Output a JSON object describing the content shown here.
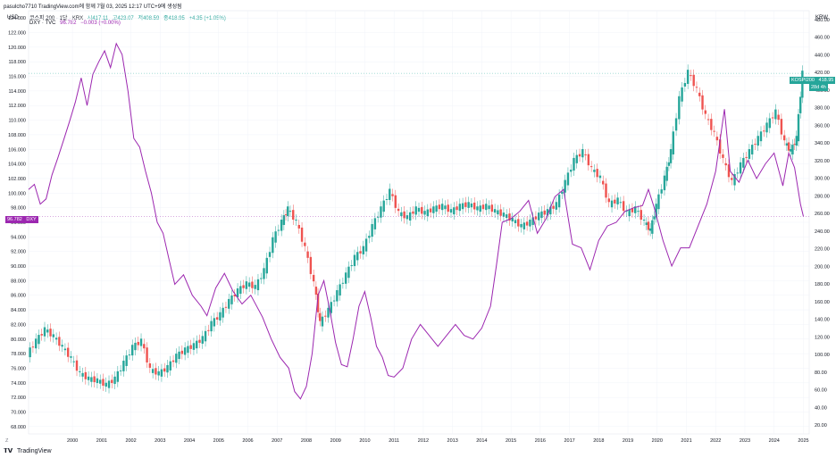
{
  "header": {
    "author_line": "pasulcho7710 TradingView.com에 함께 7월 03, 2025 12:17 UTC+9에 생성됨"
  },
  "legend": {
    "kospi": {
      "name": "코스피 200 · 1달 · KRX",
      "open": "시417.11",
      "high": "고423.07",
      "low": "저408.59",
      "close": "종418.95",
      "change": "+4.35 (+1.05%)",
      "color": "#26a69a"
    },
    "dxy": {
      "name": "DXY · TVC",
      "value": "96.782",
      "change": "−0.003 (+0.00%)",
      "color": "#9c27b0"
    }
  },
  "axes": {
    "left_unit": "USD",
    "right_unit": "KRW",
    "left_ticks": [
      "124.000",
      "122.000",
      "120.000",
      "118.000",
      "116.000",
      "114.000",
      "112.000",
      "110.000",
      "108.000",
      "106.000",
      "104.000",
      "102.000",
      "100.000",
      "98.000",
      "96.000",
      "94.000",
      "92.000",
      "90.000",
      "88.000",
      "86.000",
      "84.000",
      "82.000",
      "80.000",
      "78.000",
      "76.000",
      "74.000",
      "72.000",
      "70.000",
      "68.000"
    ],
    "right_ticks": [
      "480.00",
      "460.00",
      "440.00",
      "420.00",
      "400.00",
      "380.00",
      "360.00",
      "340.00",
      "320.00",
      "300.00",
      "280.00",
      "260.00",
      "240.00",
      "220.00",
      "200.00",
      "180.00",
      "160.00",
      "140.00",
      "120.00",
      "100.00",
      "80.00",
      "60.00",
      "40.00",
      "20.00"
    ],
    "x_ticks": [
      "2000",
      "2001",
      "2002",
      "2003",
      "2004",
      "2005",
      "2006",
      "2007",
      "2008",
      "2009",
      "2010",
      "2011",
      "2012",
      "2013",
      "2014",
      "2015",
      "2016",
      "2017",
      "2018",
      "2019",
      "2020",
      "2021",
      "2022",
      "2023",
      "2024",
      "2025"
    ],
    "corner_label": "Z"
  },
  "price_tags": {
    "dxy_value": "96.782",
    "dxy_label": "DXY",
    "kospi_label": "KOSPI200",
    "kospi_value": "418.95",
    "kospi_countdown": "28d 4h"
  },
  "footer": {
    "brand": "TradingView"
  },
  "chart_data": {
    "type": "line",
    "x_unit": "year",
    "left_axis": {
      "series": "DXY · TVC",
      "ylim": [
        67,
        125
      ]
    },
    "right_axis": {
      "series": "코스피 200 · 1달 · KRX",
      "ylim": [
        10,
        490
      ]
    },
    "series": [
      {
        "name": "DXY · TVC",
        "axis": "left",
        "style": "line",
        "x": [
          1999.0,
          1999.2,
          1999.4,
          1999.6,
          1999.8,
          2000.0,
          2000.2,
          2000.4,
          2000.6,
          2000.8,
          2001.0,
          2001.2,
          2001.4,
          2001.6,
          2001.8,
          2002.0,
          2002.2,
          2002.4,
          2002.6,
          2002.8,
          2003.0,
          2003.2,
          2003.4,
          2003.6,
          2003.8,
          2004.0,
          2004.3,
          2004.6,
          2004.9,
          2005.1,
          2005.4,
          2005.7,
          2006.0,
          2006.3,
          2006.6,
          2007.0,
          2007.3,
          2007.6,
          2007.9,
          2008.1,
          2008.3,
          2008.5,
          2008.7,
          2008.9,
          2009.1,
          2009.3,
          2009.5,
          2009.7,
          2009.9,
          2010.1,
          2010.3,
          2010.5,
          2010.7,
          2010.9,
          2011.1,
          2011.3,
          2011.5,
          2011.8,
          2012.1,
          2012.4,
          2012.7,
          2013.0,
          2013.3,
          2013.6,
          2013.9,
          2014.2,
          2014.5,
          2014.8,
          2015.0,
          2015.2,
          2015.5,
          2015.8,
          2016.1,
          2016.4,
          2016.7,
          2017.0,
          2017.3,
          2017.6,
          2017.9,
          2018.2,
          2018.5,
          2018.8,
          2019.1,
          2019.4,
          2019.7,
          2020.0,
          2020.2,
          2020.4,
          2020.7,
          2021.0,
          2021.3,
          2021.6,
          2021.9,
          2022.2,
          2022.5,
          2022.8,
          2023.0,
          2023.3,
          2023.6,
          2023.9,
          2024.2,
          2024.5,
          2024.8,
          2025.0,
          2025.2,
          2025.4,
          2025.5
        ],
        "values": [
          100.5,
          101.2,
          98.5,
          99.2,
          102.5,
          104.8,
          107.3,
          109.8,
          112.5,
          115.8,
          112.0,
          116.3,
          118.0,
          119.5,
          117.2,
          120.5,
          119.0,
          114.0,
          107.5,
          106.3,
          103.0,
          100.0,
          96.0,
          94.5,
          91.0,
          87.5,
          88.8,
          86.0,
          84.5,
          83.2,
          87.0,
          89.0,
          86.5,
          84.8,
          86.0,
          83.0,
          80.0,
          77.5,
          76.0,
          72.8,
          71.8,
          73.5,
          78.0,
          86.0,
          88.0,
          84.0,
          79.5,
          76.5,
          76.2,
          80.0,
          84.5,
          86.5,
          83.0,
          79.0,
          77.5,
          75.0,
          74.8,
          76.0,
          80.0,
          82.0,
          80.5,
          79.0,
          80.5,
          82.0,
          80.5,
          80.0,
          81.5,
          84.5,
          90.0,
          96.0,
          96.5,
          97.5,
          99.0,
          94.5,
          96.5,
          99.5,
          100.5,
          93.0,
          92.5,
          89.5,
          93.5,
          95.5,
          96.0,
          97.5,
          98.0,
          98.3,
          100.5,
          98.0,
          93.5,
          90.0,
          92.5,
          92.5,
          95.5,
          98.5,
          103.0,
          111.5,
          103.0,
          101.5,
          104.5,
          102.0,
          104.0,
          105.5,
          101.0,
          105.5,
          103.5,
          98.5,
          96.8
        ]
      },
      {
        "name": "코스피 200 · 1달 · KRX",
        "axis": "right",
        "style": "candles_monthly_close_path",
        "up_color": "#26a69a",
        "down_color": "#ef5350",
        "x": [
          1999.0,
          1999.3,
          1999.6,
          1999.9,
          2000.2,
          2000.5,
          2000.8,
          2001.1,
          2001.4,
          2001.7,
          2002.0,
          2002.3,
          2002.6,
          2002.9,
          2003.2,
          2003.5,
          2003.8,
          2004.1,
          2004.4,
          2004.7,
          2005.0,
          2005.3,
          2005.6,
          2005.9,
          2006.2,
          2006.5,
          2006.8,
          2007.1,
          2007.4,
          2007.7,
          2007.9,
          2008.2,
          2008.5,
          2008.8,
          2009.0,
          2009.3,
          2009.6,
          2009.9,
          2010.2,
          2010.5,
          2010.8,
          2011.1,
          2011.4,
          2011.7,
          2012.0,
          2012.3,
          2012.6,
          2012.9,
          2013.2,
          2013.5,
          2013.8,
          2014.1,
          2014.4,
          2014.7,
          2015.0,
          2015.3,
          2015.6,
          2015.9,
          2016.2,
          2016.5,
          2016.8,
          2017.1,
          2017.4,
          2017.7,
          2018.0,
          2018.3,
          2018.6,
          2018.9,
          2019.2,
          2019.5,
          2019.8,
          2020.1,
          2020.3,
          2020.5,
          2020.8,
          2021.0,
          2021.3,
          2021.6,
          2021.9,
          2022.2,
          2022.5,
          2022.8,
          2023.1,
          2023.4,
          2023.7,
          2024.0,
          2024.3,
          2024.6,
          2024.9,
          2025.1,
          2025.3,
          2025.5
        ],
        "values": [
          100,
          115,
          128,
          120,
          108,
          95,
          78,
          72,
          70,
          65,
          72,
          90,
          108,
          115,
          82,
          78,
          85,
          98,
          105,
          110,
          118,
          135,
          145,
          160,
          172,
          180,
          176,
          195,
          230,
          250,
          265,
          250,
          220,
          180,
          135,
          150,
          170,
          190,
          210,
          220,
          245,
          265,
          285,
          260,
          255,
          265,
          260,
          265,
          268,
          262,
          268,
          270,
          265,
          268,
          262,
          258,
          252,
          245,
          250,
          258,
          262,
          270,
          295,
          320,
          330,
          310,
          300,
          270,
          275,
          260,
          265,
          250,
          240,
          268,
          300,
          330,
          390,
          420,
          400,
          370,
          350,
          320,
          295,
          315,
          330,
          345,
          360,
          375,
          340,
          330,
          345,
          419
        ]
      }
    ]
  }
}
